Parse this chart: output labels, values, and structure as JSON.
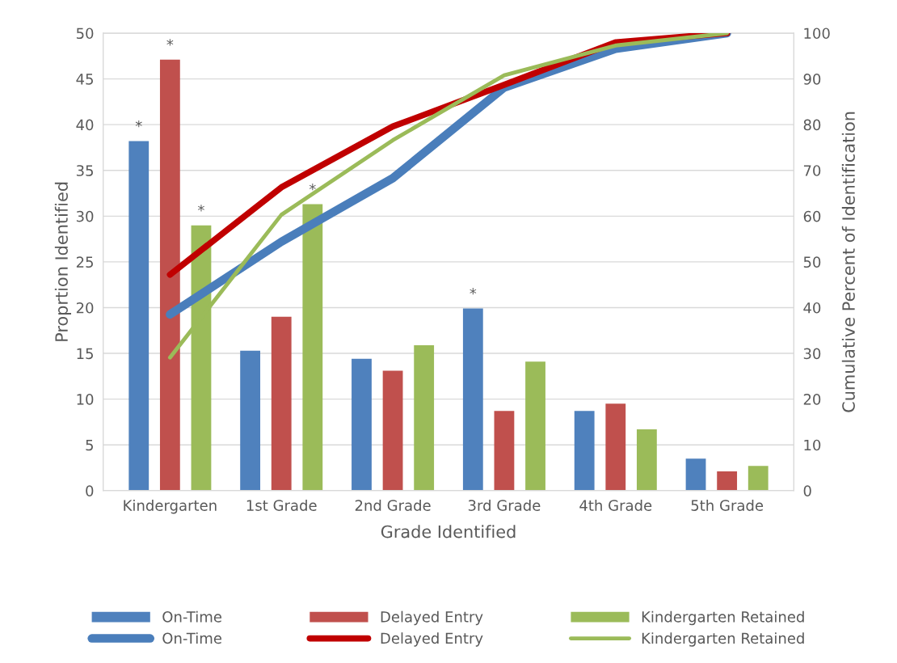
{
  "chart_data": {
    "type": "bar",
    "xlabel": "Grade Identified",
    "ylabel": "Proprtion Identified",
    "y2label": "Cumulative Percent of Identification",
    "categories": [
      "Kindergarten",
      "1st Grade",
      "2nd Grade",
      "3rd Grade",
      "4th Grade",
      "5th Grade"
    ],
    "series": [
      {
        "name": "On-Time",
        "color": "#4f81bd",
        "values": [
          38.2,
          15.3,
          14.4,
          19.9,
          8.7,
          3.5
        ],
        "value_labels": [
          "*",
          null,
          null,
          "*",
          null,
          null
        ]
      },
      {
        "name": "Delayed Entry",
        "color": "#c0504d",
        "values": [
          47.1,
          19.0,
          13.1,
          8.7,
          9.5,
          2.1
        ],
        "value_labels": [
          "*",
          null,
          null,
          null,
          null,
          null
        ]
      },
      {
        "name": "Kindergarten Retained",
        "color": "#9bbb59",
        "values": [
          29.0,
          31.3,
          15.9,
          14.1,
          6.7,
          2.7
        ],
        "value_labels": [
          "*",
          "*",
          null,
          null,
          null,
          null
        ]
      },
      {
        "name": "On-Time",
        "type": "line",
        "axis": "y2",
        "color": "#4a7ebb",
        "values": [
          38.5,
          54.4,
          68.3,
          88.1,
          96.6,
          100
        ]
      },
      {
        "name": "Delayed Entry",
        "type": "line",
        "axis": "y2",
        "color": "#c00000",
        "values": [
          47.2,
          66.3,
          79.6,
          88.7,
          98.0,
          100
        ]
      },
      {
        "name": "Kindergarten Retained",
        "type": "line",
        "axis": "y2",
        "color": "#9bbb59",
        "values": [
          29.1,
          60.3,
          76.6,
          90.8,
          97.3,
          100
        ]
      }
    ],
    "ylim": [
      0,
      50
    ],
    "yticks": [
      0,
      5,
      10,
      15,
      20,
      25,
      30,
      35,
      40,
      45,
      50
    ],
    "y2lim": [
      0,
      100
    ],
    "y2ticks": [
      0,
      10,
      20,
      30,
      40,
      50,
      60,
      70,
      80,
      90,
      100
    ],
    "grid": "y",
    "legend": "bottom",
    "marker": "none",
    "line_style": "solid"
  }
}
